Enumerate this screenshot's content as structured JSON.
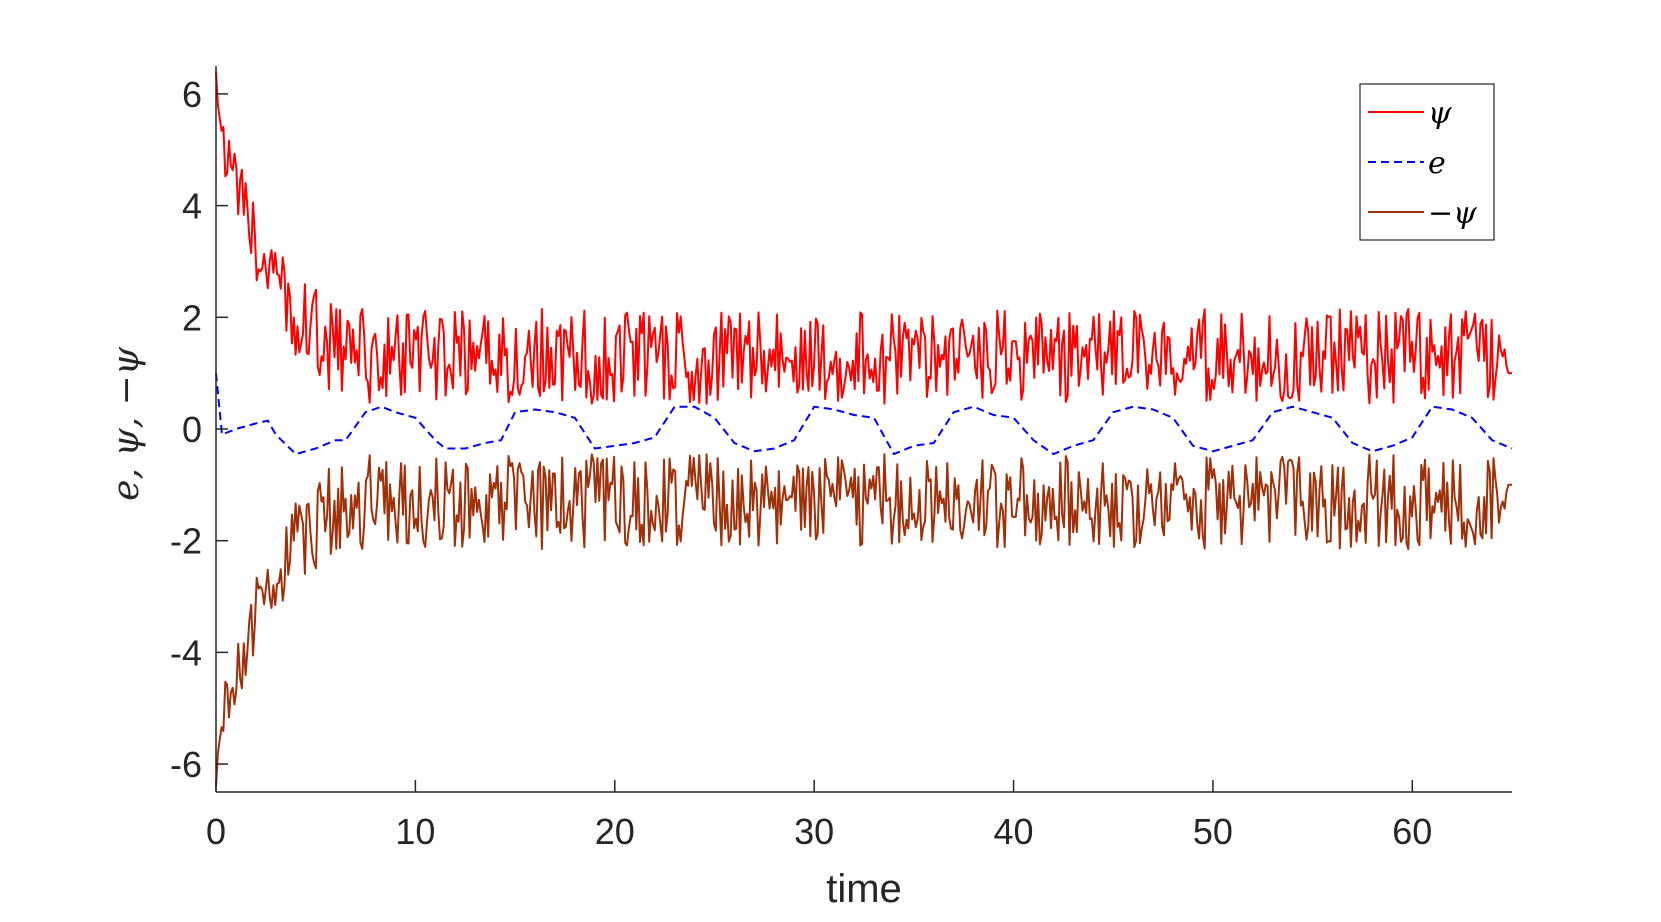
{
  "chart_data": {
    "type": "line",
    "xlabel": "time",
    "ylabel": "e, ψ, −ψ",
    "xlim": [
      0,
      65
    ],
    "ylim": [
      -6.5,
      6.5
    ],
    "xticks": [
      0,
      10,
      20,
      30,
      40,
      50,
      60
    ],
    "yticks": [
      -6,
      -4,
      -2,
      0,
      2,
      4,
      6
    ],
    "xtick_labels": [
      "0",
      "10",
      "20",
      "30",
      "40",
      "50",
      "60"
    ],
    "ytick_labels": [
      "-6",
      "-4",
      "-2",
      "0",
      "2",
      "4",
      "6"
    ],
    "legend_position": "top-right",
    "grid": false,
    "series": [
      {
        "name": "ψ",
        "style": "solid",
        "color": "#ff0000",
        "x": [
          0,
          0.2,
          0.5,
          1,
          1.5,
          2,
          2.5,
          3,
          3.5,
          4,
          4.5,
          5,
          5.5,
          6,
          7,
          8,
          9,
          10,
          12,
          14,
          16,
          18,
          20,
          22,
          24,
          26,
          28,
          30,
          32,
          34,
          36,
          38,
          40,
          42,
          44,
          46,
          48,
          50,
          52,
          54,
          56,
          58,
          60,
          62,
          64,
          65
        ],
        "values": [
          6.4,
          5.6,
          4.9,
          4.4,
          3.9,
          3.3,
          2.9,
          2.6,
          2.3,
          2.1,
          1.9,
          1.7,
          1.55,
          1.45,
          1.35,
          1.3,
          1.3,
          1.3,
          1.3,
          1.3,
          1.3,
          1.3,
          1.3,
          1.3,
          1.3,
          1.3,
          1.3,
          1.3,
          1.3,
          1.3,
          1.3,
          1.3,
          1.3,
          1.3,
          1.3,
          1.3,
          1.3,
          1.3,
          1.3,
          1.3,
          1.3,
          1.3,
          1.3,
          1.3,
          1.3,
          1.0
        ],
        "oscillation_amplitude": [
          0,
          0.5,
          0.5,
          0.5,
          0.6,
          0.6,
          0.7,
          0.7,
          0.75,
          0.8,
          0.8,
          0.85,
          0.85,
          0.85,
          0.85,
          0.85,
          0.85,
          0.85,
          0.85,
          0.85,
          0.85,
          0.85,
          0.85,
          0.85,
          0.85,
          0.85,
          0.85,
          0.85,
          0.85,
          0.85,
          0.85,
          0.85,
          0.85,
          0.85,
          0.85,
          0.85,
          0.85,
          0.85,
          0.85,
          0.85,
          0.85,
          0.85,
          0.85,
          0.85,
          0.85,
          0
        ]
      },
      {
        "name": "e",
        "style": "dashed",
        "color": "#0000ff",
        "x": [
          0,
          0.3,
          1,
          2,
          2.6,
          3,
          4,
          5,
          6,
          6.5,
          7.5,
          8.3,
          9,
          10,
          11,
          11.5,
          12.5,
          13.5,
          14.3,
          15,
          16,
          17,
          18,
          19,
          20,
          21,
          22,
          23,
          24,
          25,
          26,
          27,
          28,
          29,
          30,
          31,
          32,
          33,
          34,
          35,
          36,
          37,
          38,
          39,
          40,
          41,
          42,
          43,
          44,
          45,
          46,
          47,
          48,
          49,
          50,
          51,
          52,
          53,
          54,
          55,
          56,
          57,
          58,
          59,
          60,
          61,
          62,
          63,
          64,
          65
        ],
        "values": [
          1.0,
          -0.1,
          0.0,
          0.1,
          0.15,
          -0.1,
          -0.45,
          -0.35,
          -0.2,
          -0.2,
          0.3,
          0.4,
          0.3,
          0.2,
          -0.2,
          -0.35,
          -0.35,
          -0.25,
          -0.2,
          0.3,
          0.35,
          0.3,
          0.2,
          -0.35,
          -0.3,
          -0.25,
          -0.15,
          0.4,
          0.4,
          0.2,
          -0.25,
          -0.4,
          -0.35,
          -0.2,
          0.4,
          0.35,
          0.25,
          0.2,
          -0.45,
          -0.3,
          -0.25,
          0.3,
          0.4,
          0.25,
          0.2,
          -0.2,
          -0.45,
          -0.3,
          -0.2,
          0.3,
          0.4,
          0.35,
          0.2,
          -0.3,
          -0.4,
          -0.3,
          -0.2,
          0.3,
          0.4,
          0.3,
          0.2,
          -0.25,
          -0.4,
          -0.3,
          -0.15,
          0.4,
          0.35,
          0.2,
          -0.2,
          -0.35
        ]
      },
      {
        "name": "−ψ",
        "style": "solid",
        "color": "#a0300a",
        "x": [
          0,
          0.2,
          0.5,
          1,
          1.5,
          2,
          2.5,
          3,
          3.5,
          4,
          4.5,
          5,
          5.5,
          6,
          7,
          8,
          9,
          10,
          12,
          14,
          16,
          18,
          20,
          22,
          24,
          26,
          28,
          30,
          32,
          34,
          36,
          38,
          40,
          42,
          44,
          46,
          48,
          50,
          52,
          54,
          56,
          58,
          60,
          62,
          64,
          65
        ],
        "values": [
          -6.4,
          -5.6,
          -4.9,
          -4.4,
          -3.9,
          -3.3,
          -2.9,
          -2.6,
          -2.3,
          -2.1,
          -1.9,
          -1.7,
          -1.55,
          -1.45,
          -1.35,
          -1.3,
          -1.3,
          -1.3,
          -1.3,
          -1.3,
          -1.3,
          -1.3,
          -1.3,
          -1.3,
          -1.3,
          -1.3,
          -1.3,
          -1.3,
          -1.3,
          -1.3,
          -1.3,
          -1.3,
          -1.3,
          -1.3,
          -1.3,
          -1.3,
          -1.3,
          -1.3,
          -1.3,
          -1.3,
          -1.3,
          -1.3,
          -1.3,
          -1.3,
          -1.3,
          -1.0
        ],
        "oscillation_amplitude": [
          0,
          0.5,
          0.5,
          0.5,
          0.6,
          0.6,
          0.7,
          0.7,
          0.75,
          0.8,
          0.8,
          0.85,
          0.85,
          0.85,
          0.85,
          0.85,
          0.85,
          0.85,
          0.85,
          0.85,
          0.85,
          0.85,
          0.85,
          0.85,
          0.85,
          0.85,
          0.85,
          0.85,
          0.85,
          0.85,
          0.85,
          0.85,
          0.85,
          0.85,
          0.85,
          0.85,
          0.85,
          0.85,
          0.85,
          0.85,
          0.85,
          0.85,
          0.85,
          0.85,
          0.85,
          0
        ]
      }
    ]
  }
}
